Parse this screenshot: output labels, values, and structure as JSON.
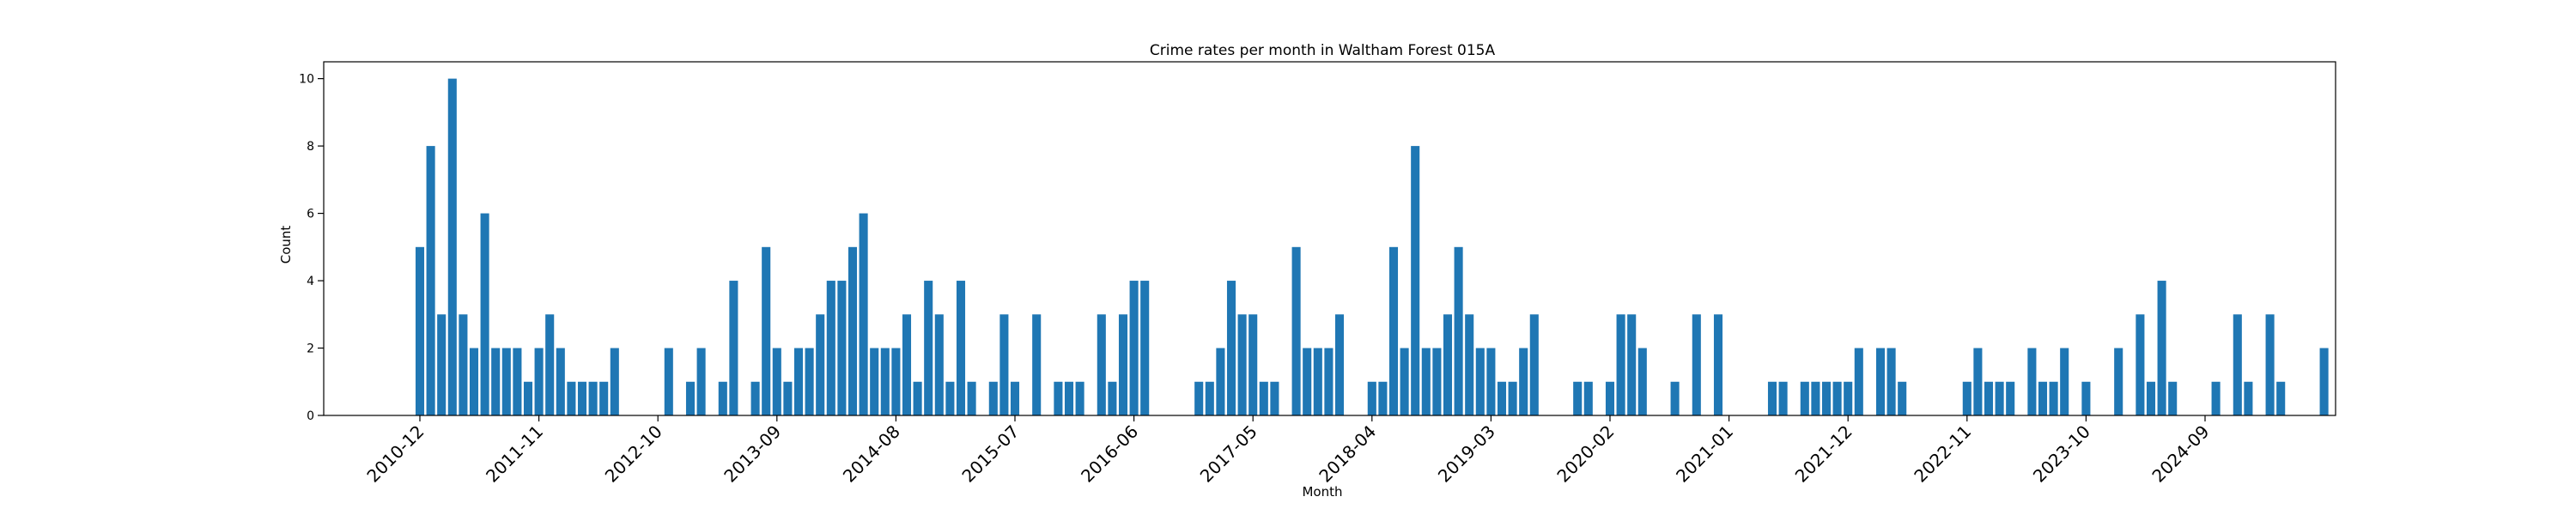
{
  "chart_data": {
    "type": "bar",
    "title": "Crime rates per month in Waltham Forest 015A",
    "xlabel": "Month",
    "ylabel": "Count",
    "ylim": [
      0,
      10.5
    ],
    "yticks": [
      0,
      2,
      4,
      6,
      8,
      10
    ],
    "bar_color": "#1f77b4",
    "start_month": "2010-12",
    "xtick_labels": [
      "2010-12",
      "2011-11",
      "2012-10",
      "2013-09",
      "2014-08",
      "2015-07",
      "2016-06",
      "2017-05",
      "2018-04",
      "2019-03",
      "2020-02",
      "2021-01",
      "2021-12",
      "2022-11",
      "2023-10",
      "2024-09"
    ],
    "values": [
      5,
      8,
      3,
      10,
      3,
      2,
      6,
      2,
      2,
      2,
      1,
      2,
      3,
      2,
      1,
      1,
      1,
      1,
      2,
      0,
      0,
      0,
      0,
      2,
      0,
      1,
      2,
      0,
      1,
      4,
      0,
      1,
      5,
      2,
      1,
      2,
      2,
      3,
      4,
      4,
      5,
      6,
      2,
      2,
      2,
      3,
      1,
      4,
      3,
      1,
      4,
      1,
      0,
      1,
      3,
      1,
      0,
      3,
      0,
      1,
      1,
      1,
      0,
      3,
      1,
      3,
      4,
      4,
      0,
      0,
      0,
      0,
      1,
      1,
      2,
      4,
      3,
      3,
      1,
      1,
      0,
      5,
      2,
      2,
      2,
      3,
      0,
      0,
      1,
      1,
      5,
      2,
      8,
      2,
      2,
      3,
      5,
      3,
      2,
      2,
      1,
      1,
      2,
      3,
      0,
      0,
      0,
      1,
      1,
      0,
      1,
      3,
      3,
      2,
      0,
      0,
      1,
      0,
      3,
      0,
      3,
      0,
      0,
      0,
      0,
      1,
      1,
      0,
      1,
      1,
      1,
      1,
      1,
      2,
      0,
      2,
      2,
      1,
      0,
      0,
      0,
      0,
      0,
      1,
      2,
      1,
      1,
      1,
      0,
      2,
      1,
      1,
      2,
      0,
      1,
      0,
      0,
      2,
      0,
      3,
      1,
      4,
      1,
      0,
      0,
      0,
      1,
      0,
      3,
      1,
      0,
      3,
      1,
      0,
      0,
      0,
      2
    ]
  }
}
